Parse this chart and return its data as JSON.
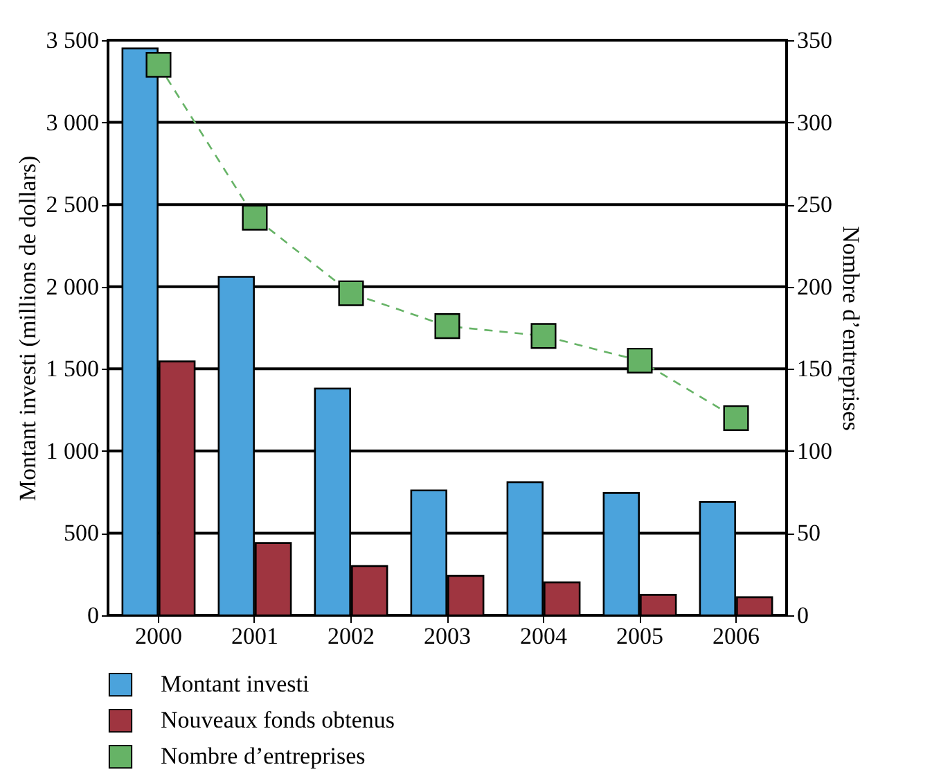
{
  "chart_data": {
    "type": "bar",
    "ylabel": "Montant investi (millions de dollars)",
    "y2label": "Nombre d’entreprises",
    "categories": [
      "2000",
      "2001",
      "2002",
      "2003",
      "2004",
      "2005",
      "2006"
    ],
    "series": [
      {
        "name": "Montant investi",
        "color": "#4ba3dc",
        "values": [
          3450,
          2060,
          1380,
          760,
          810,
          745,
          690
        ]
      },
      {
        "name": "Nouveaux fonds obtenus",
        "color": "#9f3540",
        "values": [
          1545,
          440,
          300,
          240,
          200,
          125,
          110
        ]
      },
      {
        "name": "Nombre d’entreprises",
        "type": "line",
        "axis": "y2",
        "color": "#66b366",
        "marker": "square",
        "line_style": "dashed",
        "values": [
          335,
          242,
          196,
          176,
          170,
          155,
          120
        ]
      }
    ],
    "ylim": [
      0,
      3500
    ],
    "yticks": [
      0,
      {
        "value": 500,
        "label": "500"
      },
      {
        "value": 1000,
        "label": "1 000"
      },
      {
        "value": 1500,
        "label": "1 500"
      },
      {
        "value": 2000,
        "label": "2 000"
      },
      {
        "value": 2500,
        "label": "2 500"
      },
      {
        "value": 3000,
        "label": "3 000"
      },
      {
        "value": 3500,
        "label": "3 500"
      }
    ],
    "y2lim": [
      0,
      350
    ],
    "y2ticks": [
      0,
      50,
      100,
      150,
      200,
      250,
      300,
      350
    ],
    "grid": "y",
    "legend": "bottom"
  }
}
